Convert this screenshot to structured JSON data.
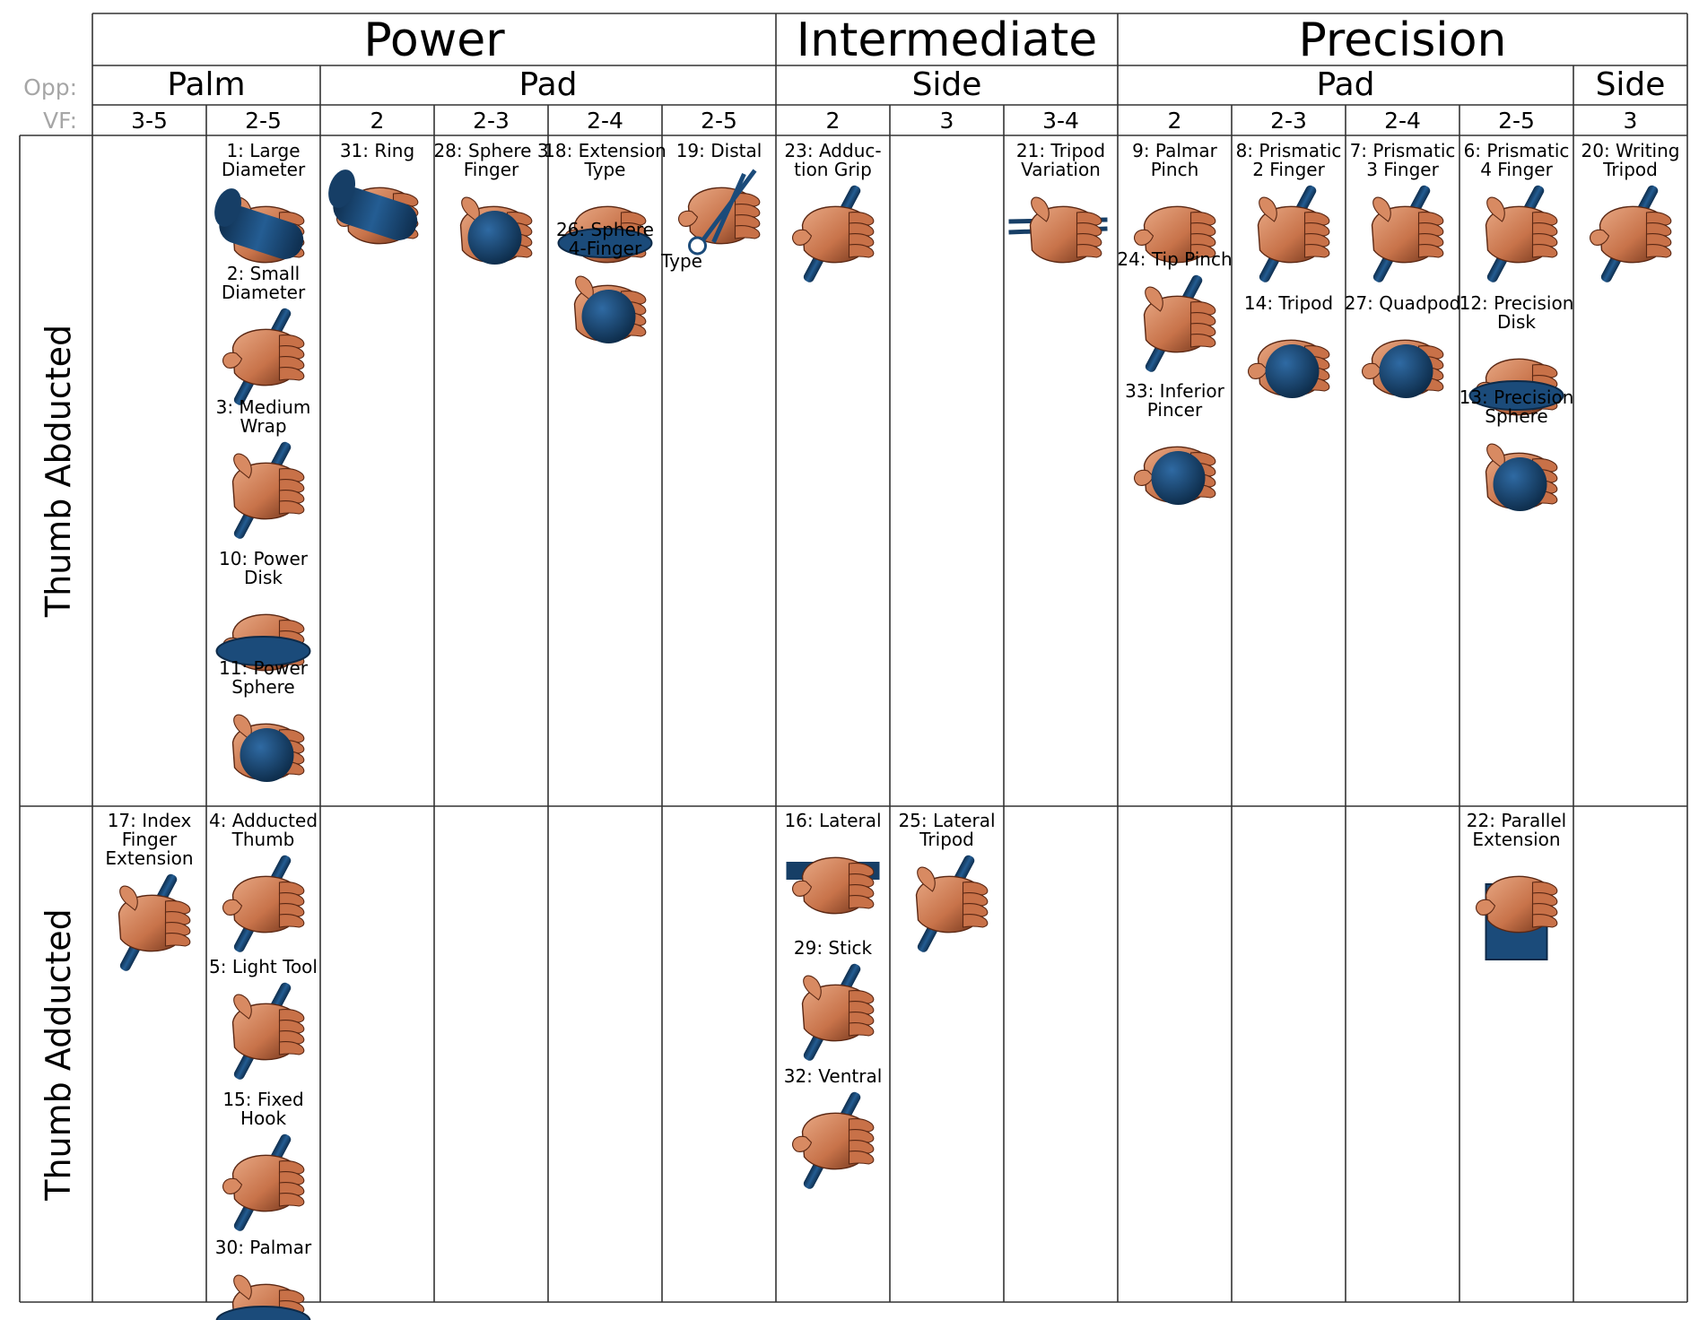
{
  "header": {
    "categories": [
      {
        "label": "Power"
      },
      {
        "label": "Intermediate"
      },
      {
        "label": "Precision"
      }
    ],
    "opposition_label": "Opp:",
    "oppositions": [
      {
        "label": "Palm"
      },
      {
        "label": "Pad"
      },
      {
        "label": "Side"
      },
      {
        "label": "Pad"
      },
      {
        "label": "Side"
      }
    ],
    "vf_label": "VF:",
    "virtual_fingers": [
      "3-5",
      "2-5",
      "2",
      "2-3",
      "2-4",
      "2-5",
      "2",
      "3",
      "3-4",
      "2",
      "2-3",
      "2-4",
      "2-5",
      "3"
    ]
  },
  "rows": [
    {
      "label": "Thumb Abducted"
    },
    {
      "label": "Thumb Adducted"
    }
  ],
  "colors": {
    "skin_light": "#d9906a",
    "skin_dark": "#7a3a1e",
    "object_blue": "#1b4b7a",
    "object_dark": "#0d2a48",
    "grid_line": "#333333",
    "side_label": "#a6a6a6"
  },
  "grasps": [
    {
      "lines": [
        "1: Large",
        "Diameter"
      ],
      "object": "cylinder"
    },
    {
      "lines": [
        "2: Small",
        "Diameter"
      ],
      "object": "rod"
    },
    {
      "lines": [
        "3: Medium",
        "Wrap"
      ],
      "object": "rod"
    },
    {
      "lines": [
        "10: Power",
        "Disk"
      ],
      "object": "disk"
    },
    {
      "lines": [
        "11: Power",
        "Sphere"
      ],
      "object": "sphere"
    },
    {
      "lines": [
        "31: Ring"
      ],
      "object": "cylinder"
    },
    {
      "lines": [
        "28: Sphere 3",
        "Finger"
      ],
      "object": "sphere"
    },
    {
      "lines": [
        "18: Extension",
        "Type"
      ],
      "object": "disk"
    },
    {
      "lines": [
        "26: Sphere",
        "4-Finger"
      ],
      "object": "sphere"
    },
    {
      "lines": [
        "19: Distal"
      ],
      "object": "scissors"
    },
    {
      "lines": [
        "Type"
      ],
      "object": "none"
    },
    {
      "lines": [
        "23: Adduc-",
        "tion Grip"
      ],
      "object": "rod"
    },
    {
      "lines": [
        "21: Tripod",
        "Variation"
      ],
      "object": "chopsticks"
    },
    {
      "lines": [
        "9: Palmar",
        "Pinch"
      ],
      "object": "none"
    },
    {
      "lines": [
        "24: Tip Pinch"
      ],
      "object": "rod"
    },
    {
      "lines": [
        "33: Inferior",
        "Pincer"
      ],
      "object": "sphere"
    },
    {
      "lines": [
        "8: Prismatic",
        "2 Finger"
      ],
      "object": "rod"
    },
    {
      "lines": [
        "14: Tripod"
      ],
      "object": "sphere"
    },
    {
      "lines": [
        "7: Prismatic",
        "3 Finger"
      ],
      "object": "rod"
    },
    {
      "lines": [
        "27: Quadpod"
      ],
      "object": "sphere"
    },
    {
      "lines": [
        "6: Prismatic",
        "4 Finger"
      ],
      "object": "rod"
    },
    {
      "lines": [
        "12: Precision",
        "Disk"
      ],
      "object": "disk"
    },
    {
      "lines": [
        "13: Precision",
        "Sphere"
      ],
      "object": "sphere"
    },
    {
      "lines": [
        "20: Writing",
        "Tripod"
      ],
      "object": "rod"
    },
    {
      "lines": [
        "17: Index",
        "Finger",
        "Extension"
      ],
      "object": "rod"
    },
    {
      "lines": [
        "4: Adducted",
        "Thumb"
      ],
      "object": "rod"
    },
    {
      "lines": [
        "5: Light Tool"
      ],
      "object": "rod"
    },
    {
      "lines": [
        "15: Fixed",
        "Hook"
      ],
      "object": "rod"
    },
    {
      "lines": [
        "30: Palmar"
      ],
      "object": "disk"
    },
    {
      "lines": [
        "16: Lateral"
      ],
      "object": "plate"
    },
    {
      "lines": [
        "29: Stick"
      ],
      "object": "rod"
    },
    {
      "lines": [
        "32: Ventral"
      ],
      "object": "rod"
    },
    {
      "lines": [
        "25: Lateral",
        "Tripod"
      ],
      "object": "rod"
    },
    {
      "lines": [
        "22: Parallel",
        "Extension"
      ],
      "object": "book"
    }
  ]
}
